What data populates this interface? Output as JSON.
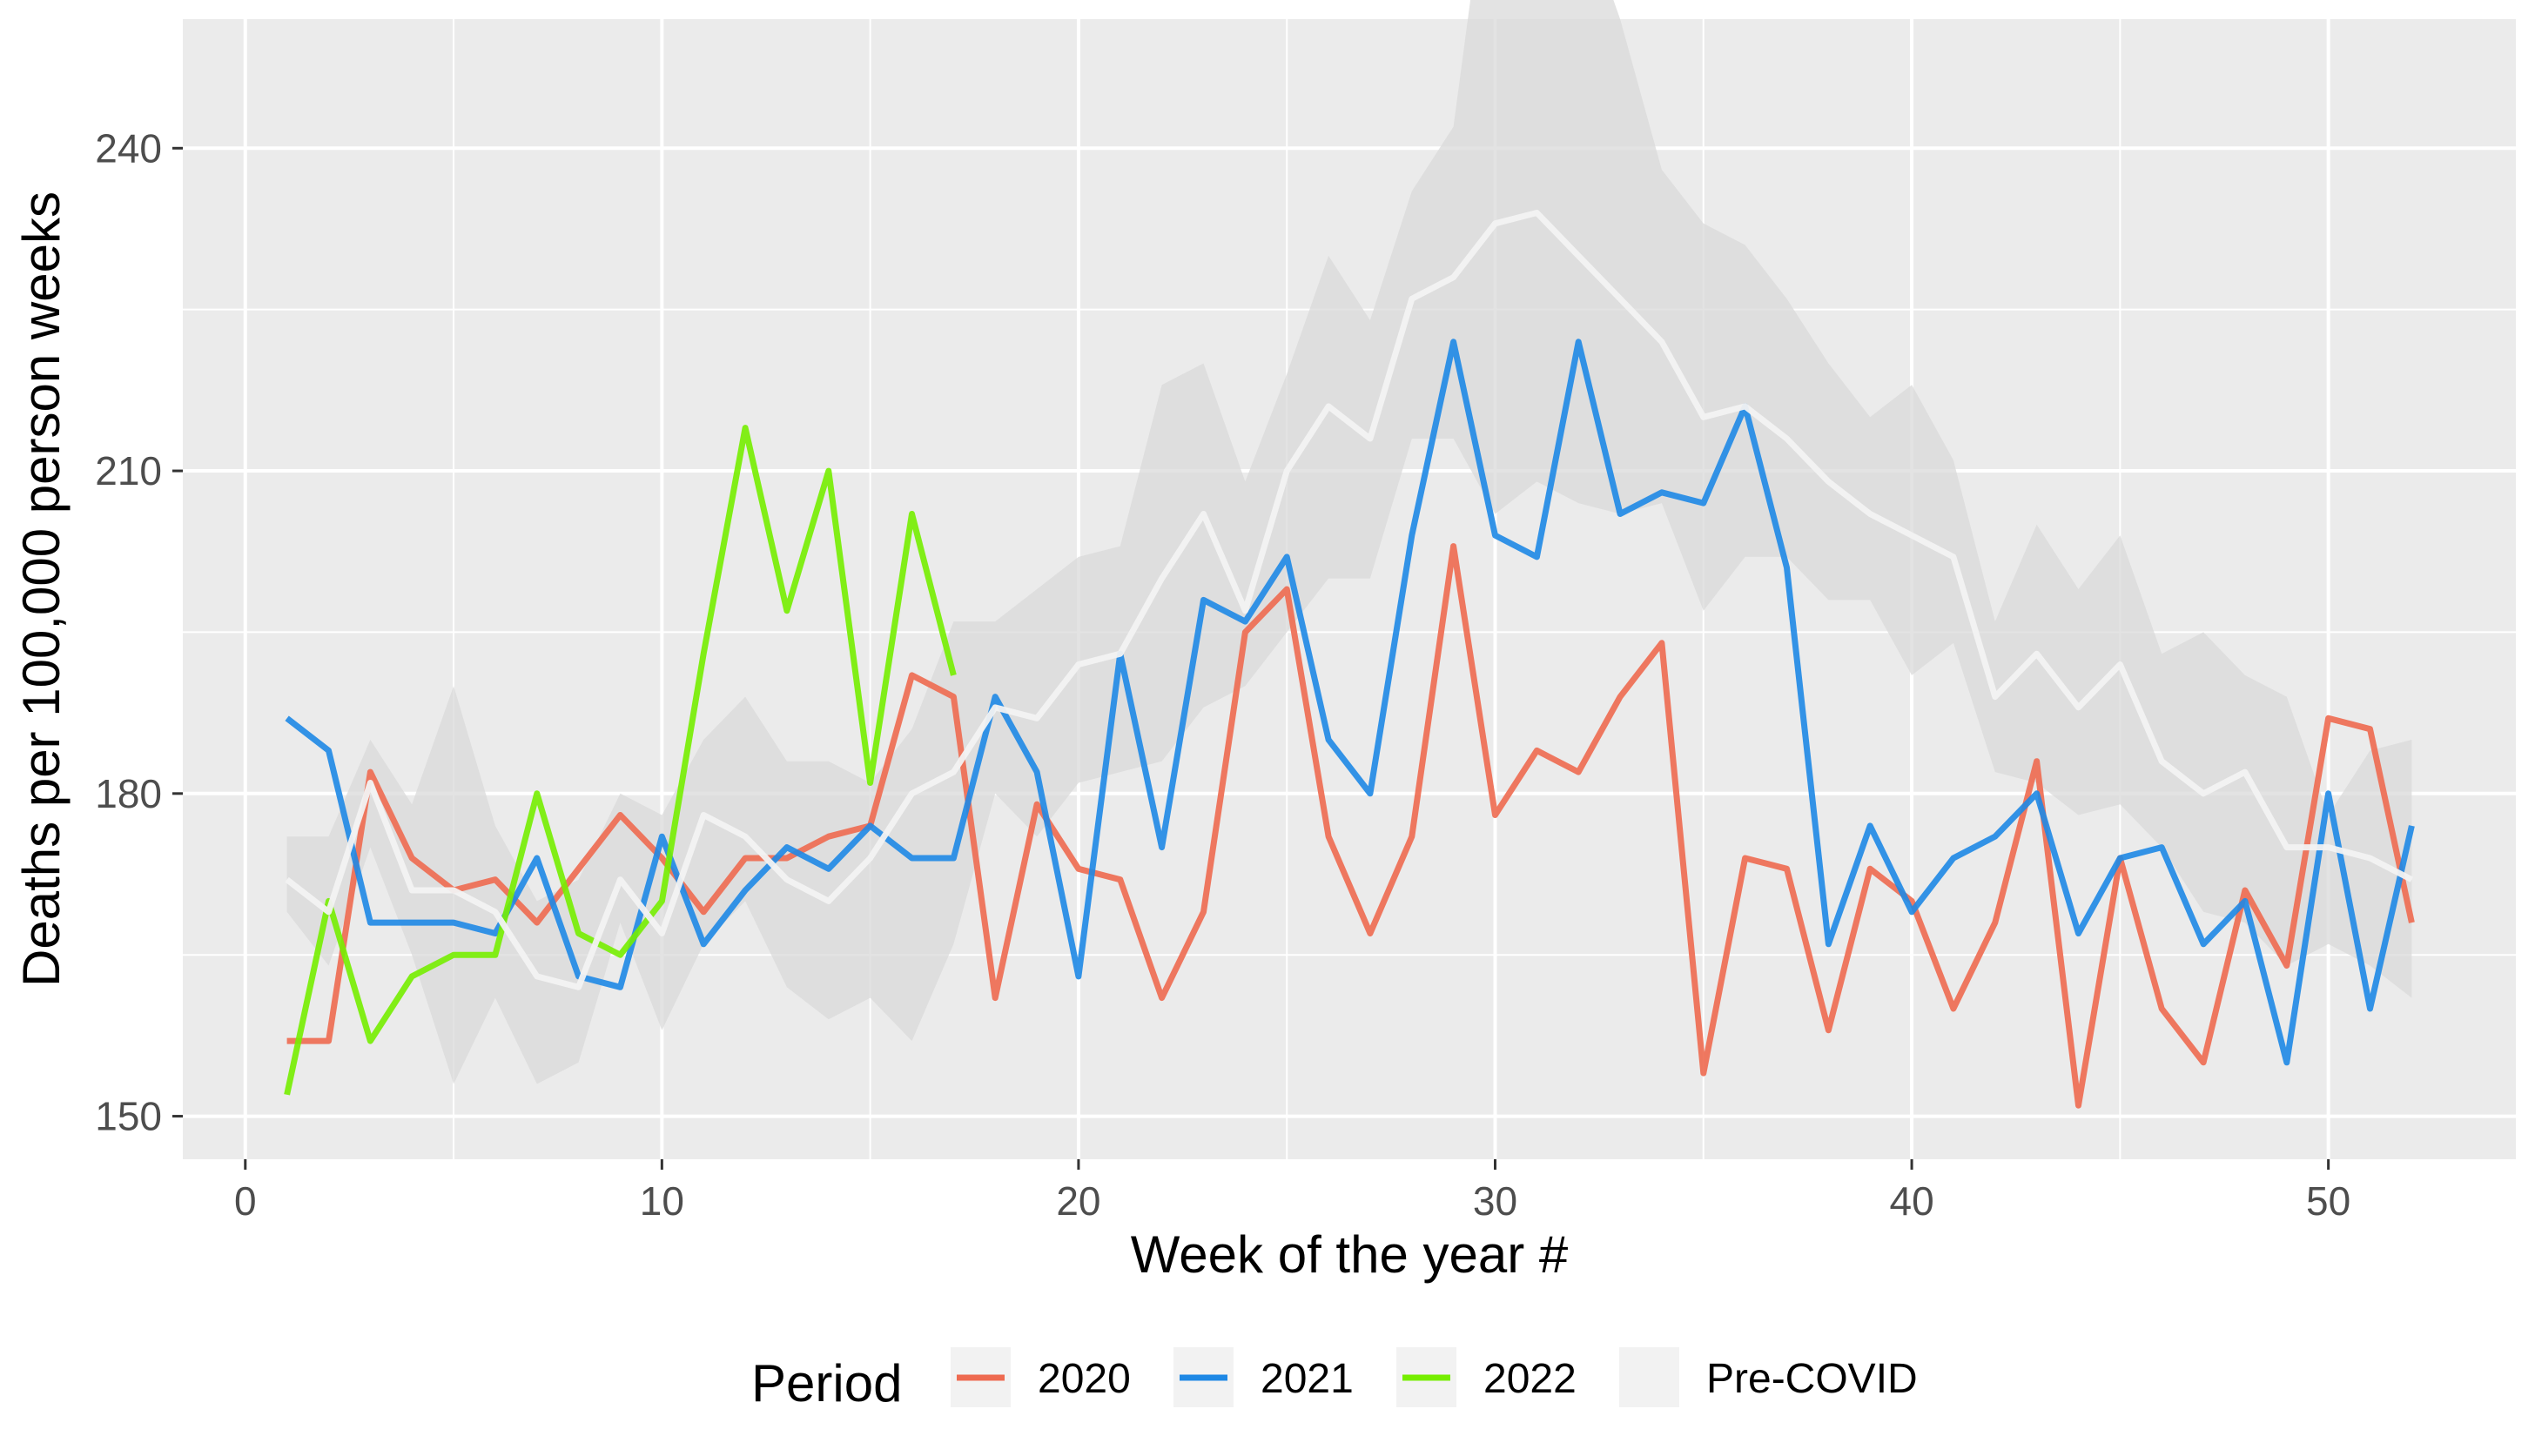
{
  "chart_data": {
    "type": "line",
    "xlabel": "Week of the year #",
    "ylabel": "Deaths per 100,000 person weeks",
    "xlim": [
      -1.5,
      54.5
    ],
    "ylim": [
      146,
      252
    ],
    "x_ticks": [
      0,
      10,
      20,
      30,
      40,
      50
    ],
    "y_ticks": [
      150,
      180,
      210,
      240
    ],
    "grid": true,
    "legend": {
      "title": "Period",
      "position": "bottom",
      "entries": [
        "2020",
        "2021",
        "2022",
        "Pre-COVID"
      ]
    },
    "colors": {
      "2020": "#EE6A50",
      "2021": "#1E88E5",
      "2022": "#76EE00",
      "Pre-COVID": "#F2F2F2",
      "ribbon": "#D9D9D9",
      "panel": "#EBEBEB"
    },
    "ribbon": {
      "x": [
        1,
        2,
        3,
        4,
        5,
        6,
        7,
        8,
        9,
        10,
        11,
        12,
        13,
        14,
        15,
        16,
        17,
        18,
        19,
        20,
        21,
        22,
        23,
        24,
        25,
        26,
        27,
        28,
        29,
        30,
        31,
        32,
        33,
        34,
        35,
        36,
        37,
        38,
        39,
        40,
        41,
        42,
        43,
        44,
        45,
        46,
        47,
        48,
        49,
        50,
        51,
        52
      ],
      "lower": [
        169,
        164,
        175,
        165,
        153,
        161,
        153,
        155,
        168,
        158,
        166,
        170,
        162,
        159,
        161,
        157,
        166,
        180,
        176,
        181,
        182,
        183,
        188,
        190,
        195,
        200,
        200,
        213,
        213,
        206,
        209,
        207,
        206,
        207,
        197,
        202,
        202,
        198,
        198,
        191,
        194,
        182,
        181,
        178,
        179,
        175,
        169,
        168,
        164,
        166,
        164,
        161
      ],
      "upper": [
        176,
        176,
        185,
        179,
        190,
        177,
        170,
        172,
        180,
        178,
        185,
        189,
        183,
        183,
        181,
        186,
        196,
        196,
        199,
        202,
        203,
        218,
        220,
        209,
        219,
        230,
        224,
        236,
        242,
        271,
        268,
        263,
        252,
        238,
        233,
        231,
        226,
        220,
        215,
        218,
        211,
        196,
        205,
        199,
        204,
        193,
        195,
        191,
        189,
        178,
        184,
        185
      ]
    },
    "series": [
      {
        "name": "2020",
        "x": [
          1,
          2,
          3,
          4,
          5,
          6,
          7,
          8,
          9,
          10,
          11,
          12,
          13,
          14,
          15,
          16,
          17,
          18,
          19,
          20,
          21,
          22,
          23,
          24,
          25,
          26,
          27,
          28,
          29,
          30,
          31,
          32,
          33,
          34,
          35,
          36,
          37,
          38,
          39,
          40,
          41,
          42,
          43,
          44,
          45,
          46,
          47,
          48,
          49,
          50,
          51,
          52
        ],
        "values": [
          157,
          157,
          182,
          174,
          171,
          172,
          168,
          173,
          178,
          174,
          169,
          174,
          174,
          176,
          177,
          191,
          189,
          161,
          179,
          173,
          172,
          161,
          169,
          195,
          199,
          176,
          167,
          176,
          203,
          178,
          184,
          182,
          189,
          194,
          154,
          174,
          173,
          158,
          173,
          170,
          160,
          168,
          183,
          151,
          174,
          160,
          155,
          171,
          164,
          187,
          186,
          168
        ]
      },
      {
        "name": "2021",
        "x": [
          1,
          2,
          3,
          4,
          5,
          6,
          7,
          8,
          9,
          10,
          11,
          12,
          13,
          14,
          15,
          16,
          17,
          18,
          19,
          20,
          21,
          22,
          23,
          24,
          25,
          26,
          27,
          28,
          29,
          30,
          31,
          32,
          33,
          34,
          35,
          36,
          37,
          38,
          39,
          40,
          41,
          42,
          43,
          44,
          45,
          46,
          47,
          48,
          49,
          50,
          51,
          52
        ],
        "values": [
          187,
          184,
          168,
          168,
          168,
          167,
          174,
          163,
          162,
          176,
          166,
          171,
          175,
          173,
          177,
          174,
          174,
          189,
          182,
          163,
          193,
          175,
          198,
          196,
          202,
          185,
          180,
          204,
          222,
          204,
          202,
          222,
          206,
          208,
          207,
          216,
          201,
          166,
          177,
          169,
          174,
          176,
          180,
          167,
          174,
          175,
          166,
          170,
          155,
          180,
          160,
          177
        ]
      },
      {
        "name": "2022",
        "x": [
          1,
          2,
          3,
          4,
          5,
          6,
          7,
          8,
          9,
          10,
          11,
          12,
          13,
          14,
          15,
          16,
          17
        ],
        "values": [
          152,
          170,
          157,
          163,
          165,
          165,
          180,
          167,
          165,
          170,
          193,
          214,
          197,
          210,
          181,
          206,
          191
        ]
      },
      {
        "name": "Pre-COVID",
        "x": [
          1,
          2,
          3,
          4,
          5,
          6,
          7,
          8,
          9,
          10,
          11,
          12,
          13,
          14,
          15,
          16,
          17,
          18,
          19,
          20,
          21,
          22,
          23,
          24,
          25,
          26,
          27,
          28,
          29,
          30,
          31,
          32,
          33,
          34,
          35,
          36,
          37,
          38,
          39,
          40,
          41,
          42,
          43,
          44,
          45,
          46,
          47,
          48,
          49,
          50,
          51,
          52
        ],
        "values": [
          172,
          169,
          181,
          171,
          171,
          169,
          163,
          162,
          172,
          167,
          178,
          176,
          172,
          170,
          174,
          180,
          182,
          188,
          187,
          192,
          193,
          200,
          206,
          197,
          210,
          216,
          213,
          226,
          228,
          233,
          234,
          230,
          226,
          222,
          215,
          216,
          213,
          209,
          206,
          204,
          202,
          189,
          193,
          188,
          192,
          183,
          180,
          182,
          175,
          175,
          174,
          172
        ]
      }
    ]
  }
}
